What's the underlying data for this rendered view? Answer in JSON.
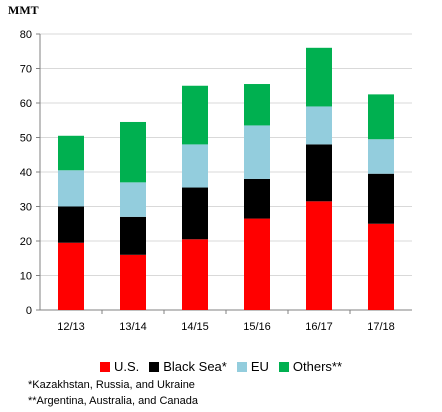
{
  "chart_data": {
    "type": "bar",
    "stacked": true,
    "ylabel": "MMT",
    "ylim": [
      0,
      80
    ],
    "yticks": [
      0,
      10,
      20,
      30,
      40,
      50,
      60,
      70,
      80
    ],
    "grid": true,
    "legend_position": "bottom",
    "categories": [
      "12/13",
      "13/14",
      "14/15",
      "15/16",
      "16/17",
      "17/18"
    ],
    "series": [
      {
        "name": "U.S.",
        "color": "#ff0000",
        "values": [
          19.5,
          16,
          20.5,
          26.5,
          31.5,
          25
        ]
      },
      {
        "name": "Black Sea*",
        "color": "#000000",
        "values": [
          10.5,
          11,
          15,
          11.5,
          16.5,
          14.5
        ]
      },
      {
        "name": "EU",
        "color": "#93cddd",
        "values": [
          10.5,
          10,
          12.5,
          15.5,
          11,
          10
        ]
      },
      {
        "name": "Others**",
        "color": "#00b050",
        "values": [
          10,
          17.5,
          17,
          12,
          17,
          13
        ]
      }
    ],
    "footnotes": [
      "*Kazakhstan, Russia, and Ukraine",
      "**Argentina, Australia, and Canada"
    ]
  }
}
